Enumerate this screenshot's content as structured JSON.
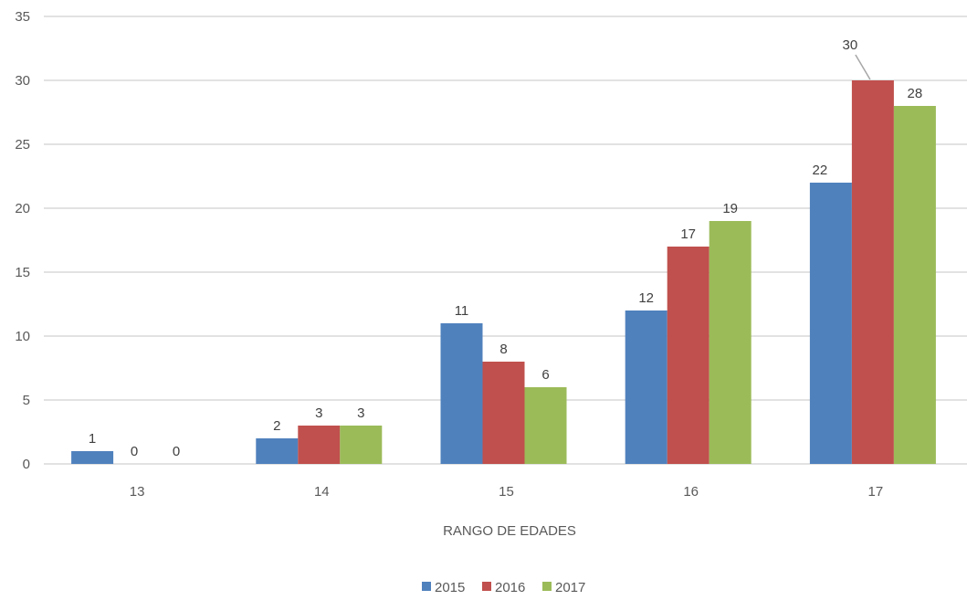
{
  "chart_data": {
    "type": "bar",
    "title": "",
    "xlabel": "RANGO DE EDADES",
    "ylabel": "",
    "categories": [
      "13",
      "14",
      "15",
      "16",
      "17"
    ],
    "series": [
      {
        "name": "2015",
        "values": [
          1,
          2,
          11,
          12,
          22
        ]
      },
      {
        "name": "2016",
        "values": [
          0,
          3,
          8,
          17,
          30
        ]
      },
      {
        "name": "2017",
        "values": [
          0,
          3,
          6,
          19,
          28
        ]
      }
    ],
    "ylim": [
      0,
      35
    ],
    "yticks": [
      0,
      5,
      10,
      15,
      20,
      25,
      30,
      35
    ],
    "grid": true,
    "legend": "bottom",
    "colors": [
      "#4f81bd",
      "#c0504d",
      "#9bbb59"
    ]
  }
}
